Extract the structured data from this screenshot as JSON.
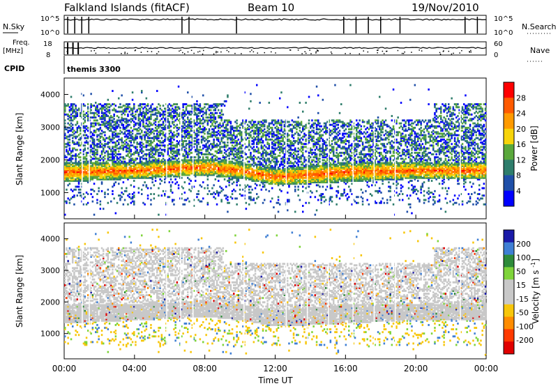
{
  "header": {
    "station": "Falkland Islands (fitACF)",
    "beam": "Beam 10",
    "date": "19/Nov/2010"
  },
  "top_panels": {
    "nsky_label": "N.Sky",
    "nsky_ticks": [
      "10^5",
      "10^0"
    ],
    "nsearch_label": "N.Search",
    "nsearch_ticks": [
      "10^5",
      "10^0"
    ],
    "freq_label": "Freq.",
    "freq_unit": "[MHz]",
    "freq_ticks": [
      "18",
      "8"
    ],
    "nave_label": "Nave",
    "nave_ticks": [
      "60",
      "0"
    ],
    "cpid_label": "CPID",
    "cpid_value": "themis 3300"
  },
  "chart_data": [
    {
      "type": "heatmap",
      "name": "power",
      "ylabel": "Slant Range [km]",
      "yticks": [
        "1000",
        "2000",
        "3000",
        "4000"
      ],
      "ylim": [
        200,
        4500
      ],
      "xlim": [
        0,
        24
      ],
      "colorbar_label": "Power [dB]",
      "colorbar_ticks": [
        "4",
        "8",
        "12",
        "16",
        "20",
        "24",
        "28"
      ],
      "colors": [
        "#0000ff",
        "#1f4fa8",
        "#2e7d6b",
        "#5aa83c",
        "#f7d40a",
        "#ff9a00",
        "#ff5a00",
        "#ff0000"
      ],
      "scatter_band": [
        {
          "t": 0.0,
          "low": 1300,
          "high": 1900
        },
        {
          "t": 4.0,
          "low": 1400,
          "high": 1900
        },
        {
          "t": 8.0,
          "low": 1500,
          "high": 2000
        },
        {
          "t": 10.0,
          "low": 1400,
          "high": 1900
        },
        {
          "t": 12.0,
          "low": 1200,
          "high": 1700
        },
        {
          "t": 16.0,
          "low": 1300,
          "high": 1900
        },
        {
          "t": 20.0,
          "low": 1400,
          "high": 1900
        },
        {
          "t": 24.0,
          "low": 1400,
          "high": 1900
        }
      ]
    },
    {
      "type": "heatmap",
      "name": "velocity",
      "ylabel": "Slant Range [km]",
      "yticks": [
        "1000",
        "2000",
        "3000",
        "4000"
      ],
      "ylim": [
        200,
        4500
      ],
      "xlim": [
        0,
        24
      ],
      "colorbar_label": "Velocity [m s^-1]",
      "colorbar_ticks": [
        "200",
        "100",
        "50",
        "15",
        "-15",
        "-50",
        "-100",
        "-200"
      ],
      "colors": [
        "#1a1aa8",
        "#3f7fd4",
        "#2e8b3a",
        "#7fd43a",
        "#c8c8c8",
        "#c8c8c8",
        "#f7c60a",
        "#ff8c00",
        "#ff3a00",
        "#e00000"
      ],
      "xticks": [
        "00:00",
        "04:00",
        "08:00",
        "12:00",
        "16:00",
        "20:00",
        "00:00"
      ],
      "xlabel": "Time UT"
    }
  ]
}
